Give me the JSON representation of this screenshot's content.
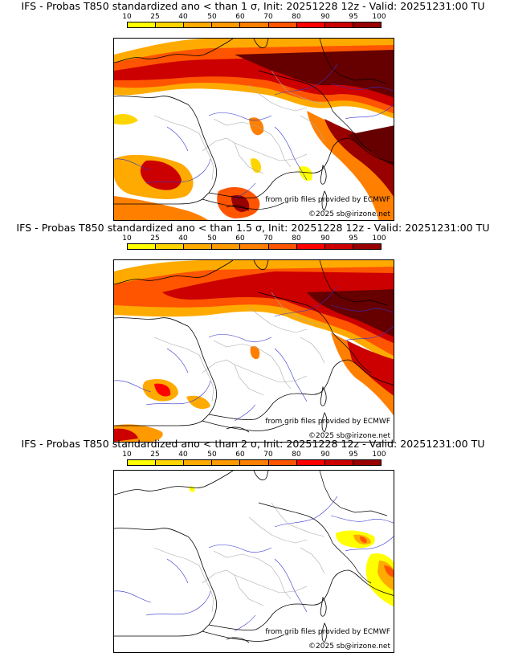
{
  "colorbar": {
    "ticks": [
      "10",
      "25",
      "40",
      "50",
      "60",
      "70",
      "80",
      "90",
      "95",
      "100"
    ],
    "colors": [
      "#ffff00",
      "#ffd500",
      "#ffaa00",
      "#ff9900",
      "#ff7f00",
      "#ff5500",
      "#ff0000",
      "#cc0000",
      "#990000",
      "#660000"
    ]
  },
  "panels": [
    {
      "title": "IFS - Probas T850  standardized ano < than 1 σ, Init: 20251228 12z - Valid: 20251231:00 TU"
    },
    {
      "title": "IFS - Probas T850  standardized ano < than 1.5 σ, Init: 20251228 12z - Valid: 20251231:00 TU"
    },
    {
      "title": "IFS - Probas T850  standardized ano < than 2 σ, Init: 20251228 12z - Valid: 20251231:00 TU"
    }
  ],
  "credits": {
    "source": "from grib files provided by ECMWF",
    "copyright": "©2025 sb@irizone.net"
  }
}
